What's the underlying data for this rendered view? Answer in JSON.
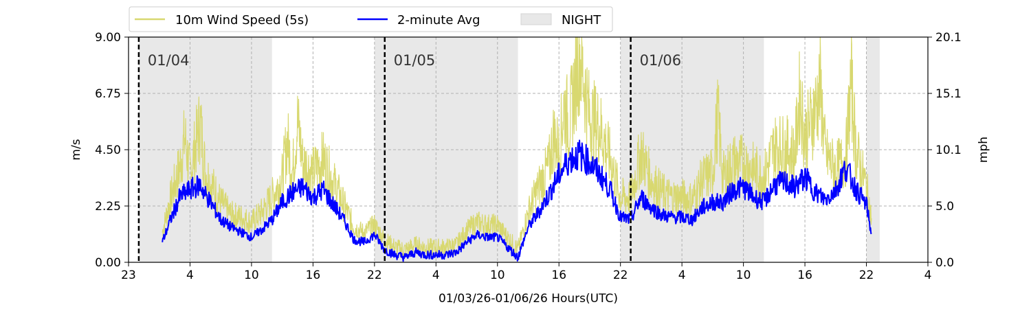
{
  "chart_data": {
    "type": "line",
    "title": "",
    "xlabel": "01/03/26-01/06/26  Hours(UTC)",
    "ylabel": "m/s",
    "ylabel_right": "mph",
    "xlim": [
      0,
      78
    ],
    "ylim": [
      0,
      9.0
    ],
    "x_tick_labels": [
      "23",
      "4",
      "10",
      "16",
      "22",
      "4",
      "10",
      "16",
      "22",
      "4",
      "10",
      "16",
      "22",
      "4"
    ],
    "x_tick_positions": [
      0,
      6,
      12,
      18,
      24,
      30,
      36,
      42,
      48,
      54,
      60,
      66,
      72,
      78
    ],
    "y_tick_labels": [
      "0.00",
      "2.25",
      "4.50",
      "6.75",
      "9.00"
    ],
    "y_tick_values": [
      0,
      2.25,
      4.5,
      6.75,
      9.0
    ],
    "y2_tick_labels": [
      "0.0",
      "5.0",
      "10.1",
      "15.1",
      "20.1"
    ],
    "grid": true,
    "legend_placement": "top-left",
    "legend": [
      {
        "label": "10m Wind Speed (5s)",
        "kind": "line",
        "color": "#d8d870"
      },
      {
        "label": "2-minute Avg",
        "kind": "line",
        "color": "#0000ff"
      },
      {
        "label": "NIGHT",
        "kind": "patch",
        "color": "#e8e8e8"
      }
    ],
    "night_bands": [
      [
        1,
        14
      ],
      [
        24,
        38
      ],
      [
        48,
        62
      ],
      [
        72,
        73.3
      ]
    ],
    "day_markers": [
      {
        "x": 1,
        "label": "01/04"
      },
      {
        "x": 25,
        "label": "01/05"
      },
      {
        "x": 49,
        "label": "01/06"
      }
    ],
    "series": [
      {
        "name": "2-minute Avg",
        "color": "#0000ff",
        "x": [
          3.3,
          4,
          5,
          6,
          7,
          7.5,
          8,
          9,
          10,
          11,
          12,
          13,
          14,
          15,
          16,
          17,
          18,
          19,
          20,
          21,
          22,
          23,
          24,
          25,
          26,
          27,
          28,
          29,
          30,
          31,
          32,
          33,
          34,
          35,
          36,
          37,
          38,
          39,
          40,
          41,
          42,
          43,
          44,
          45,
          46,
          47,
          48,
          49,
          50,
          51,
          52,
          53,
          54,
          55,
          56,
          57,
          58,
          59,
          60,
          61,
          62,
          63,
          64,
          65,
          66,
          67,
          68,
          69,
          70,
          71,
          72,
          72.5
        ],
        "values": [
          0.8,
          1.6,
          2.6,
          2.9,
          3.1,
          2.7,
          2.4,
          1.7,
          1.4,
          1.2,
          1.0,
          1.3,
          1.7,
          2.4,
          2.8,
          3.0,
          2.6,
          2.9,
          2.3,
          1.7,
          0.9,
          0.8,
          1.1,
          0.5,
          0.3,
          0.2,
          0.4,
          0.3,
          0.3,
          0.3,
          0.4,
          0.8,
          1.1,
          1.0,
          1.0,
          0.6,
          0.2,
          1.4,
          2.0,
          2.7,
          3.5,
          4.1,
          4.3,
          4.0,
          3.5,
          2.9,
          1.8,
          1.7,
          2.6,
          2.2,
          1.9,
          1.8,
          1.8,
          1.7,
          2.2,
          2.4,
          2.4,
          2.9,
          3.0,
          2.6,
          2.4,
          3.1,
          3.2,
          3.0,
          3.4,
          2.8,
          2.5,
          2.9,
          3.8,
          2.9,
          2.3,
          1.1
        ]
      },
      {
        "name": "10m Wind Speed (5s)",
        "color": "#d8d870",
        "x": [
          3.3,
          4,
          5,
          5.5,
          6,
          6.5,
          7,
          7.5,
          8,
          9,
          10,
          11,
          12,
          13,
          14,
          15,
          15.5,
          16,
          16.5,
          17,
          18,
          19,
          20,
          21,
          22,
          23,
          24,
          25,
          26,
          27,
          28,
          29,
          30,
          31,
          32,
          33,
          34,
          35,
          36,
          37,
          38,
          39,
          40,
          41,
          41.5,
          42,
          42.5,
          43,
          44,
          45,
          46,
          47,
          48,
          49,
          50,
          51,
          52,
          53,
          54,
          55,
          56,
          57,
          57.5,
          58,
          59,
          60,
          61,
          62,
          63,
          64,
          65,
          65.5,
          66,
          67,
          67.5,
          68,
          69,
          70,
          70.5,
          71,
          72,
          72.5
        ],
        "values": [
          1.2,
          2.4,
          3.8,
          5.0,
          3.5,
          4.6,
          5.6,
          3.6,
          3.2,
          2.4,
          1.9,
          1.8,
          1.6,
          2.0,
          2.6,
          3.4,
          4.9,
          3.6,
          5.6,
          4.0,
          3.6,
          4.1,
          3.2,
          2.3,
          1.4,
          1.2,
          1.5,
          0.9,
          0.6,
          0.5,
          0.7,
          0.6,
          0.6,
          0.6,
          0.7,
          1.3,
          1.6,
          1.5,
          1.5,
          1.0,
          0.5,
          2.0,
          3.0,
          3.8,
          5.1,
          4.4,
          6.3,
          5.5,
          8.4,
          5.8,
          5.4,
          4.1,
          2.6,
          2.6,
          4.4,
          3.3,
          2.8,
          2.6,
          2.6,
          2.5,
          3.3,
          3.6,
          5.9,
          3.4,
          4.0,
          4.0,
          3.7,
          3.4,
          4.6,
          4.6,
          4.3,
          6.7,
          5.0,
          6.1,
          7.0,
          4.3,
          3.7,
          4.2,
          7.2,
          4.4,
          3.0,
          1.7
        ]
      }
    ]
  }
}
